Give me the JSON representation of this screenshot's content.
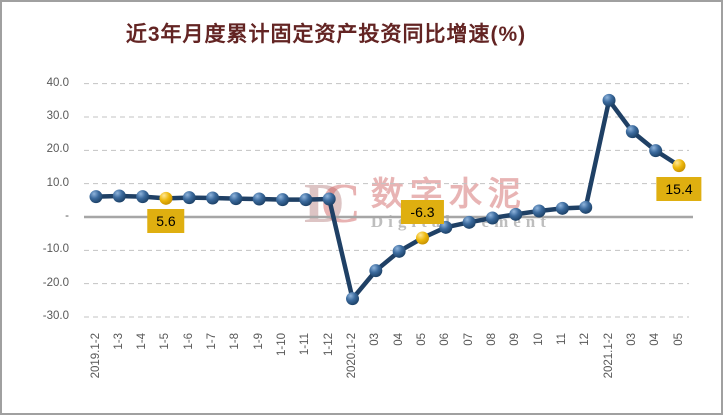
{
  "title": "近3年月度累计固定资产投资同比增速(%)",
  "watermark": {
    "monogram_d": "D",
    "monogram_c": "C",
    "cn": "数字水泥",
    "en": "Digital Cement"
  },
  "chart_data": {
    "type": "line",
    "title": "近3年月度累计固定资产投资同比增速(%)",
    "categories": [
      "2019.1-2",
      "1-3",
      "1-4",
      "1-5",
      "1-6",
      "1-7",
      "1-8",
      "1-9",
      "1-10",
      "1-11",
      "1-12",
      "2020.1-2",
      "03",
      "04",
      "05",
      "06",
      "07",
      "08",
      "09",
      "10",
      "11",
      "12",
      "2021.1-2",
      "03",
      "04",
      "05"
    ],
    "values": [
      6.1,
      6.3,
      6.1,
      5.6,
      5.8,
      5.7,
      5.5,
      5.4,
      5.2,
      5.2,
      5.4,
      -24.5,
      -16.1,
      -10.3,
      -6.3,
      -3.1,
      -1.6,
      -0.3,
      0.8,
      1.8,
      2.6,
      2.9,
      35.0,
      25.6,
      19.9,
      15.4
    ],
    "ylim": [
      -35,
      42
    ],
    "yticks": [
      {
        "value": 40,
        "label": "40.0"
      },
      {
        "value": 30,
        "label": "30.0"
      },
      {
        "value": 20,
        "label": "20.0"
      },
      {
        "value": 10,
        "label": "10.0"
      },
      {
        "value": 0,
        "label": "-"
      },
      {
        "value": -10,
        "label": "-10.0"
      },
      {
        "value": -20,
        "label": "-20.0"
      },
      {
        "value": -30,
        "label": "-30.0"
      }
    ],
    "grid": "horizontal-dashed",
    "legend": "none",
    "annotations": [
      {
        "index": 3,
        "category": "1-5",
        "value": 5.6,
        "label": "5.6",
        "placement": "below"
      },
      {
        "index": 14,
        "category": "05",
        "value": -6.3,
        "label": "-6.3",
        "placement": "above"
      },
      {
        "index": 25,
        "category": "05",
        "value": 15.4,
        "label": "15.4",
        "placement": "below"
      }
    ],
    "colors": {
      "line": "#1f4065",
      "marker": "#35689f",
      "highlight_marker": "#edb70a",
      "annotation_bg": "#dfaf10",
      "annotation_text": "#000000",
      "axis_text": "#595959",
      "gridline": "#c3c3c3",
      "zero_line": "#a6a6a6",
      "title": "#632423"
    }
  }
}
